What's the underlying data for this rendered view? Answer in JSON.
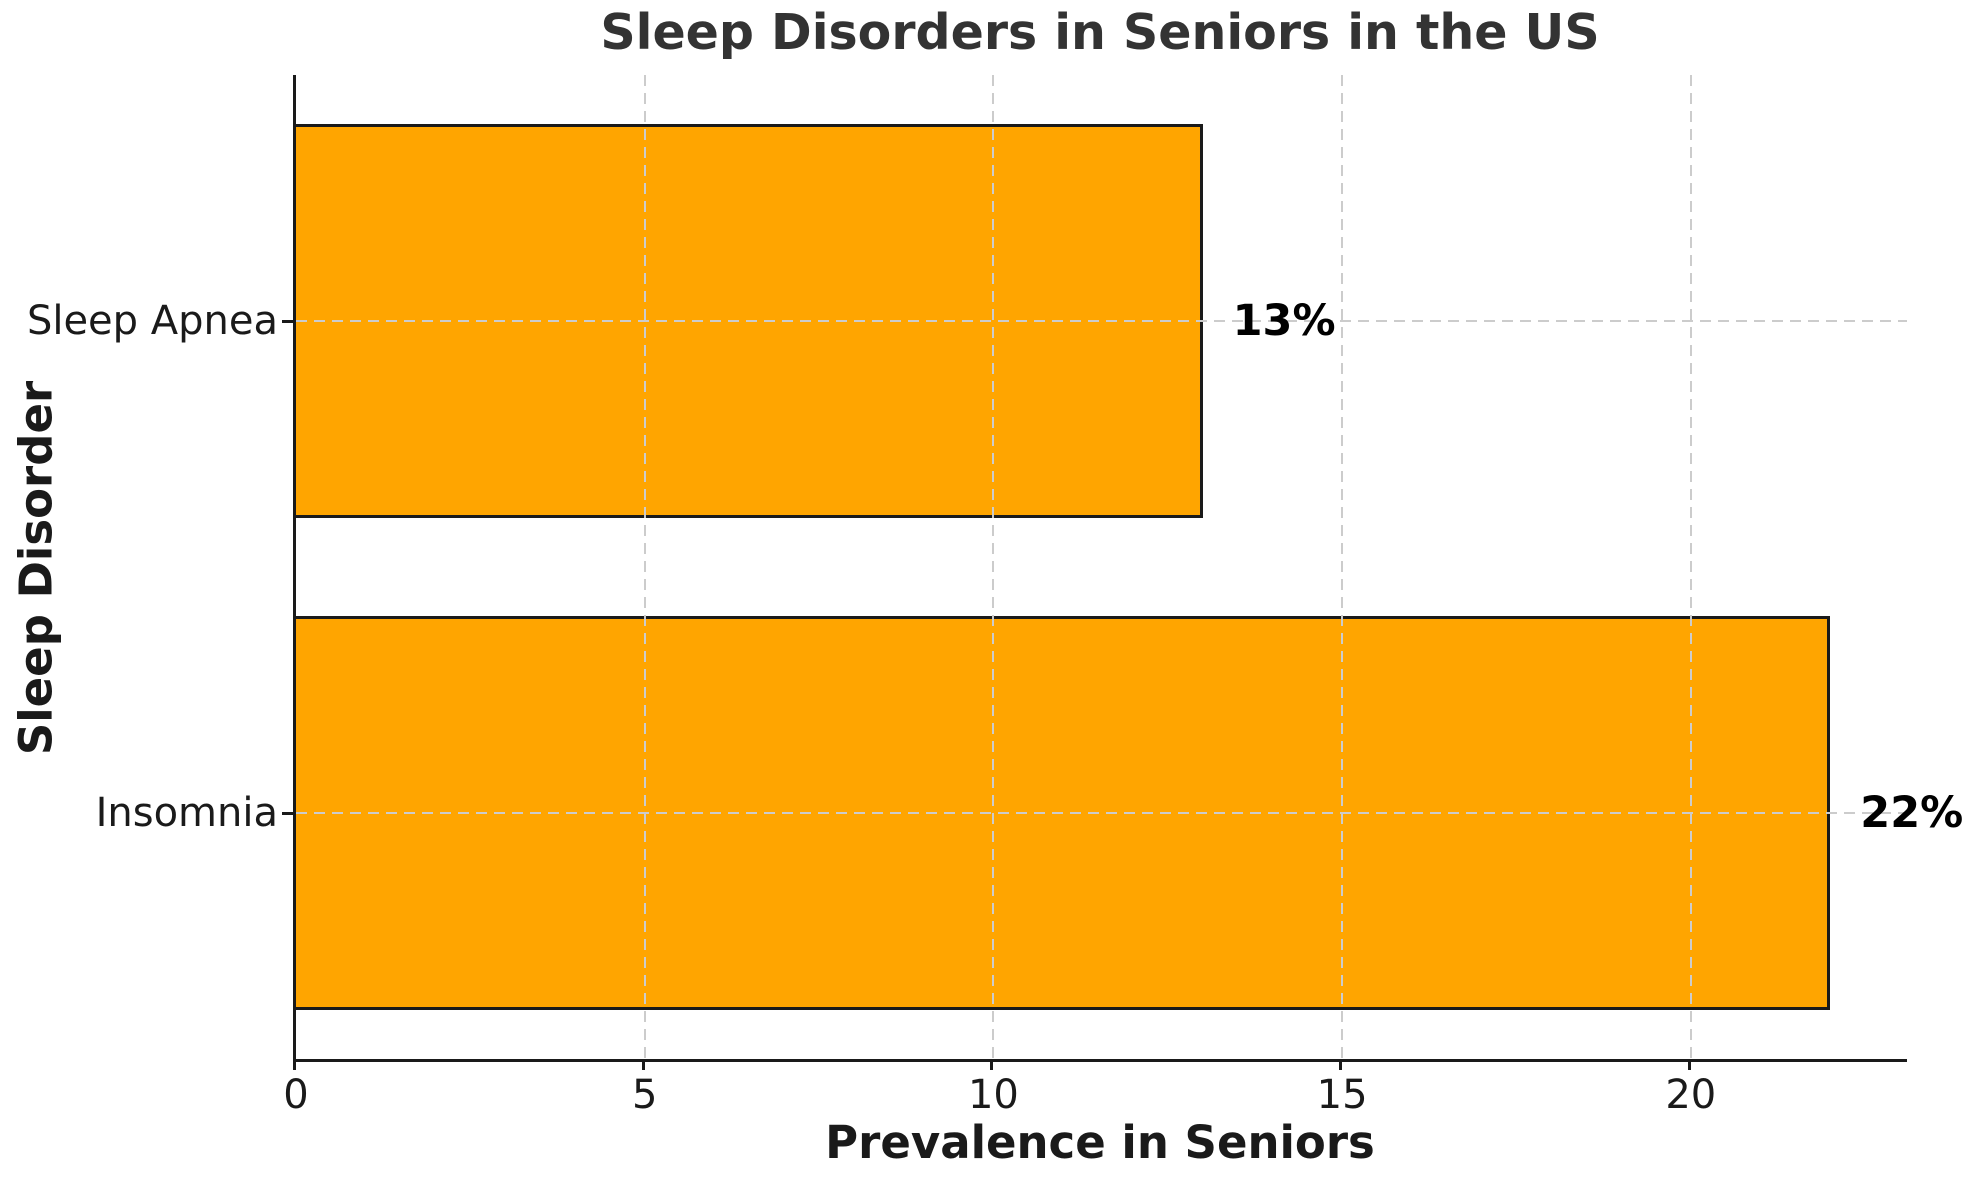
{
  "chart_data": {
    "type": "bar",
    "orientation": "horizontal",
    "title": "Sleep Disorders in Seniors in the US",
    "xlabel": "Prevalence in Seniors",
    "ylabel": "Sleep Disorder",
    "categories": [
      "Sleep Apnea",
      "Insomnia"
    ],
    "values": [
      13,
      22
    ],
    "value_labels": [
      "13%",
      "22%"
    ],
    "xticks": [
      0,
      5,
      10,
      15,
      20
    ],
    "xlim": [
      0,
      23.1
    ],
    "bar_height_ratio": 0.8,
    "grid": "dashed",
    "gridlines_above_bars": true,
    "legend": null,
    "colors": {
      "bar_fill": "#FFA500",
      "bar_edge": "#1a1a1a",
      "grid": "#cccccc",
      "spine": "#1a1a1a",
      "title": "#333333",
      "text": "#1a1a1a",
      "value_label": "#000000",
      "background": "#ffffff"
    }
  }
}
